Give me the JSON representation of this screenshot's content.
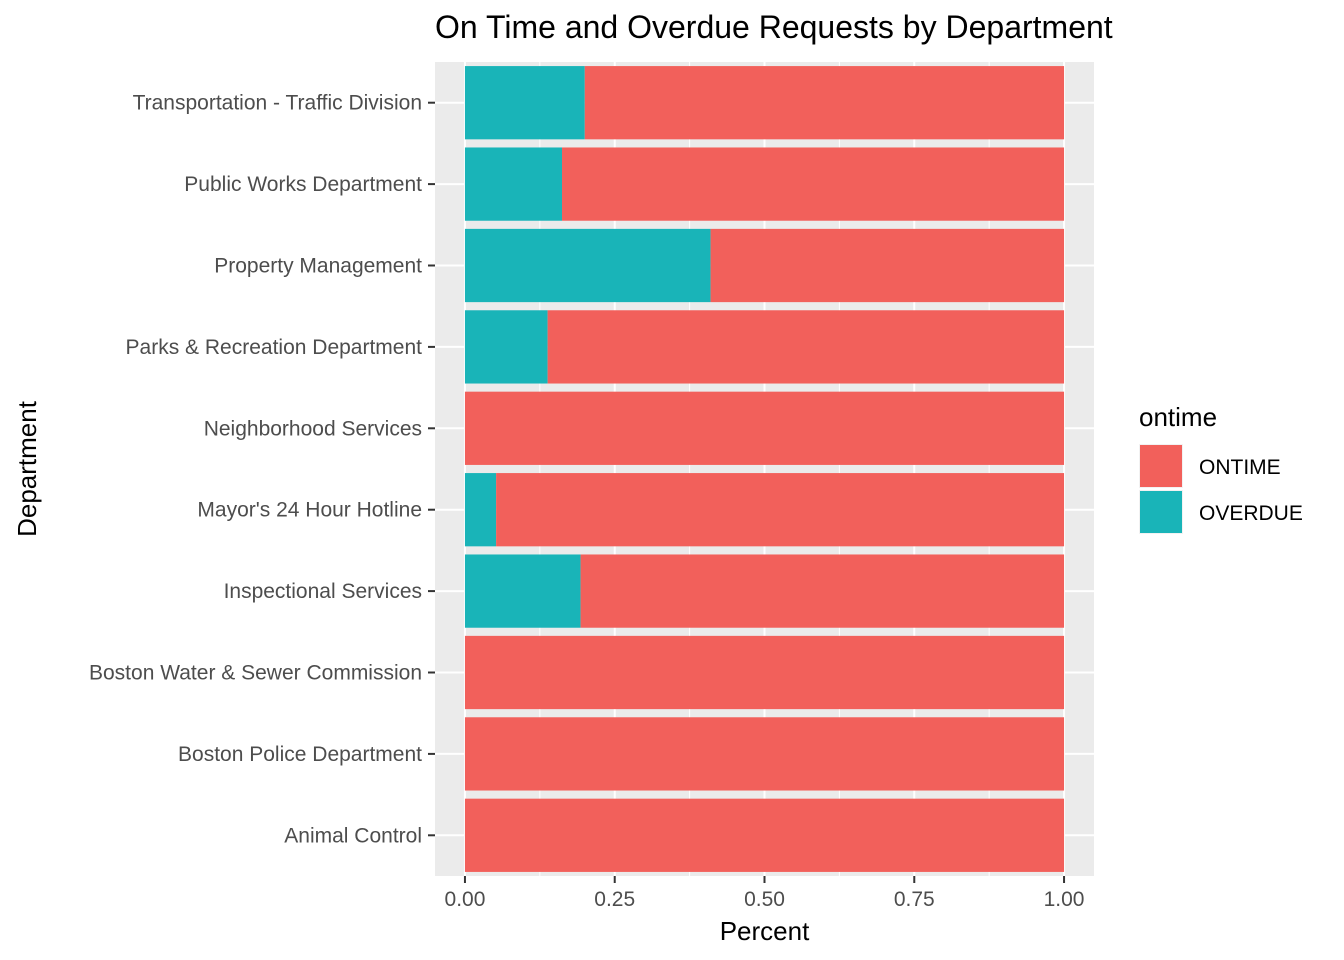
{
  "chart_data": {
    "type": "bar",
    "orientation": "horizontal",
    "stacked": true,
    "title": "On Time and Overdue Requests by Department",
    "xlabel": "Percent",
    "ylabel": "Department",
    "xlim": [
      -0.05,
      1.05
    ],
    "xticks": [
      0.0,
      0.25,
      0.5,
      0.75,
      1.0
    ],
    "xtick_labels": [
      "0.00",
      "0.25",
      "0.50",
      "0.75",
      "1.00"
    ],
    "grid": true,
    "legend": {
      "title": "ontime",
      "position": "right",
      "entries": [
        "ONTIME",
        "OVERDUE"
      ]
    },
    "categories": [
      "Animal Control",
      "Boston Police Department",
      "Boston Water & Sewer Commission",
      "Inspectional Services",
      "Mayor's 24 Hour Hotline",
      "Neighborhood Services",
      "Parks & Recreation Department",
      "Property Management",
      "Public Works Department",
      "Transportation - Traffic Division"
    ],
    "series": [
      {
        "name": "OVERDUE",
        "color": "#19B4B8",
        "values": [
          0.0,
          0.0,
          0.0,
          0.193,
          0.052,
          0.0,
          0.138,
          0.41,
          0.162,
          0.2
        ]
      },
      {
        "name": "ONTIME",
        "color": "#F2605B",
        "values": [
          1.0,
          1.0,
          1.0,
          0.807,
          0.948,
          1.0,
          0.862,
          0.59,
          0.838,
          0.8
        ]
      }
    ]
  }
}
